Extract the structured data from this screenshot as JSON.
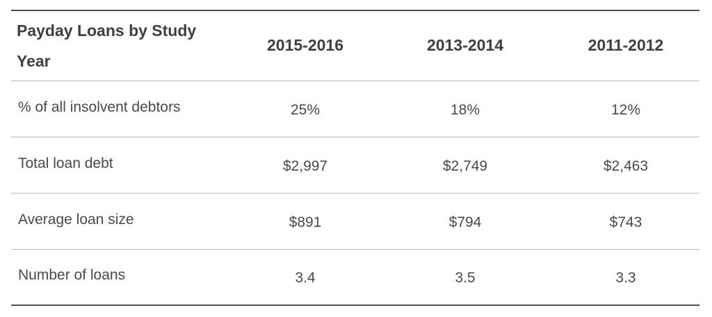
{
  "chart_data": {
    "type": "table",
    "header": {
      "row_header": "Payday Loans by Study Year",
      "columns": [
        "2015-2016",
        "2013-2014",
        "2011-2012"
      ]
    },
    "rows": [
      {
        "label": "% of all insolvent debtors",
        "values": [
          "25%",
          "18%",
          "12%"
        ]
      },
      {
        "label": "Total loan debt",
        "values": [
          "$2,997",
          "$2,749",
          "$2,463"
        ]
      },
      {
        "label": "Average loan size",
        "values": [
          "$891",
          "$794",
          "$743"
        ]
      },
      {
        "label": "Number of loans",
        "values": [
          "3.4",
          "3.5",
          "3.3"
        ]
      }
    ]
  }
}
